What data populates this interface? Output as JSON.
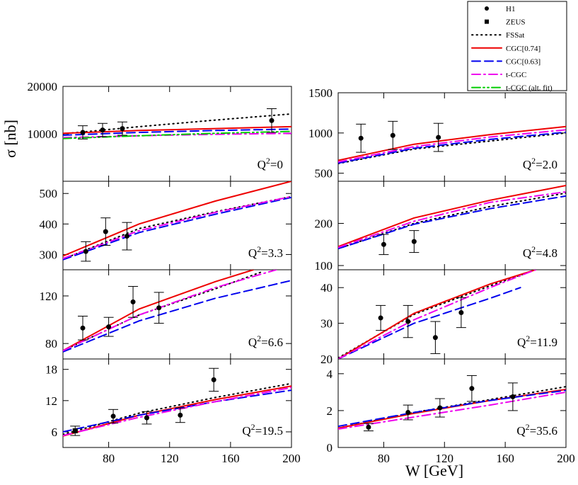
{
  "chart_data": {
    "type": "line",
    "ylabel": "σ [nb]",
    "xlabel": "W [GeV]",
    "xlim": [
      50,
      200
    ],
    "x_ticks": [
      80,
      120,
      160,
      200
    ],
    "grid": false,
    "legend_position": "top-right",
    "legend": [
      {
        "key": "H1",
        "label": "H1",
        "kind": "marker",
        "marker": "circle"
      },
      {
        "key": "ZEUS",
        "label": "ZEUS",
        "kind": "marker",
        "marker": "square"
      },
      {
        "key": "FSSat",
        "label": "FSSat",
        "kind": "line",
        "color": "#000000",
        "dash": "1.5,5"
      },
      {
        "key": "CGC074",
        "label": "CGC[0.74]",
        "kind": "line",
        "color": "#ee0000",
        "dash": ""
      },
      {
        "key": "CGC063",
        "label": "CGC[0.63]",
        "kind": "line",
        "color": "#0000ee",
        "dash": "12,6"
      },
      {
        "key": "tCGC",
        "label": "t-CGC",
        "kind": "line",
        "color": "#ee00ee",
        "dash": "12,5,2,5"
      },
      {
        "key": "tCGCalt",
        "label": "t-CGC (alt. fit)",
        "kind": "line",
        "color": "#00cc00",
        "dash": "12,4,2,4,2,4"
      }
    ],
    "panels": [
      {
        "label": "0",
        "ylim": [
          0,
          20000
        ],
        "y_ticks": [
          10000,
          20000
        ],
        "series": [
          {
            "key": "FSSat",
            "x": [
              50,
              100,
              150,
              200
            ],
            "y": [
              10000,
              11500,
              12900,
              14200
            ]
          },
          {
            "key": "CGC074",
            "x": [
              50,
              100,
              150,
              200
            ],
            "y": [
              10100,
              10700,
              11100,
              11500
            ]
          },
          {
            "key": "CGC063",
            "x": [
              50,
              100,
              150,
              200
            ],
            "y": [
              9700,
              10300,
              10700,
              11000
            ]
          },
          {
            "key": "tCGC",
            "x": [
              50,
              100,
              150,
              200
            ],
            "y": [
              9200,
              9600,
              9900,
              10100
            ]
          },
          {
            "key": "tCGCalt",
            "x": [
              50,
              100,
              150,
              200
            ],
            "y": [
              9000,
              9600,
              10100,
              10500
            ]
          }
        ],
        "points": [
          {
            "x": 63,
            "y": 10300,
            "err": 1400,
            "marker": "circle"
          },
          {
            "x": 76,
            "y": 10800,
            "err": 1400,
            "marker": "circle"
          },
          {
            "x": 89,
            "y": 11100,
            "err": 1400,
            "marker": "circle"
          },
          {
            "x": 187,
            "y": 12800,
            "err": 2500,
            "marker": "circle"
          }
        ]
      },
      {
        "label": "2.0",
        "ylim": [
          400,
          1500
        ],
        "y_ticks": [
          500,
          1000,
          1500
        ],
        "series": [
          {
            "key": "FSSat",
            "x": [
              50,
              100,
              150,
              200
            ],
            "y": [
              620,
              800,
              900,
              1000
            ]
          },
          {
            "key": "CGC074",
            "x": [
              50,
              100,
              150,
              200
            ],
            "y": [
              660,
              860,
              980,
              1080
            ]
          },
          {
            "key": "CGC063",
            "x": [
              50,
              100,
              150,
              200
            ],
            "y": [
              625,
              810,
              920,
              1010
            ]
          },
          {
            "key": "tCGC",
            "x": [
              50,
              100,
              150,
              200
            ],
            "y": [
              640,
              830,
              950,
              1040
            ]
          }
        ],
        "points": [
          {
            "x": 65,
            "y": 935,
            "err": 175,
            "marker": "circle"
          },
          {
            "x": 86,
            "y": 970,
            "err": 175,
            "marker": "circle"
          },
          {
            "x": 116,
            "y": 945,
            "err": 175,
            "marker": "circle"
          }
        ]
      },
      {
        "label": "3.3",
        "ylim": [
          250,
          540
        ],
        "y_ticks": [
          300,
          400,
          500
        ],
        "series": [
          {
            "key": "FSSat",
            "x": [
              50,
              100,
              150,
              200
            ],
            "y": [
              285,
              385,
              440,
              490
            ]
          },
          {
            "key": "CGC074",
            "x": [
              50,
              100,
              150,
              200
            ],
            "y": [
              295,
              400,
              475,
              540
            ]
          },
          {
            "key": "CGC063",
            "x": [
              50,
              100,
              150,
              200
            ],
            "y": [
              283,
              372,
              432,
              487
            ]
          },
          {
            "key": "tCGC",
            "x": [
              50,
              100,
              150,
              200
            ],
            "y": [
              287,
              378,
              438,
              490
            ]
          }
        ],
        "points": [
          {
            "x": 65,
            "y": 310,
            "err": 32,
            "marker": "circle"
          },
          {
            "x": 78,
            "y": 375,
            "err": 45,
            "marker": "circle"
          },
          {
            "x": 92,
            "y": 360,
            "err": 45,
            "marker": "circle"
          }
        ]
      },
      {
        "label": "4.8",
        "ylim": [
          90,
          300
        ],
        "y_ticks": [
          100,
          200
        ],
        "series": [
          {
            "key": "FSSat",
            "x": [
              50,
              100,
              150,
              200
            ],
            "y": [
              140,
              200,
              240,
              272
            ]
          },
          {
            "key": "CGC074",
            "x": [
              50,
              100,
              150,
              200
            ],
            "y": [
              145,
              213,
              255,
              290
            ]
          },
          {
            "key": "CGC063",
            "x": [
              50,
              100,
              150,
              200
            ],
            "y": [
              140,
              198,
              235,
              265
            ]
          },
          {
            "key": "tCGC",
            "x": [
              50,
              100,
              150,
              200
            ],
            "y": [
              143,
              205,
              250,
              275
            ]
          }
        ],
        "points": [
          {
            "x": 80,
            "y": 150,
            "err": 24,
            "marker": "circle"
          },
          {
            "x": 100,
            "y": 157,
            "err": 26,
            "marker": "circle"
          }
        ]
      },
      {
        "label": "6.6",
        "ylim": [
          67,
          142
        ],
        "y_ticks": [
          80,
          120
        ],
        "series": [
          {
            "key": "FSSat",
            "x": [
              50,
              100,
              150,
              180
            ],
            "y": [
              74,
              104,
              126,
              140
            ]
          },
          {
            "key": "CGC074",
            "x": [
              50,
              100,
              150,
              175
            ],
            "y": [
              74,
              109,
              132,
              142
            ]
          },
          {
            "key": "CGC063",
            "x": [
              50,
              100,
              150,
              200
            ],
            "y": [
              73,
              99,
              118,
              133
            ]
          },
          {
            "key": "tCGC",
            "x": [
              50,
              100,
              150,
              190
            ],
            "y": [
              74,
              104,
              127,
              142
            ]
          }
        ],
        "points": [
          {
            "x": 63,
            "y": 93,
            "err": 10,
            "marker": "circle"
          },
          {
            "x": 80,
            "y": 94,
            "err": 8,
            "marker": "circle"
          },
          {
            "x": 96,
            "y": 115,
            "err": 13,
            "marker": "circle"
          },
          {
            "x": 113,
            "y": 110,
            "err": 13,
            "marker": "circle"
          }
        ]
      },
      {
        "label": "11.9",
        "ylim": [
          20,
          45
        ],
        "y_ticks": [
          20,
          30,
          40
        ],
        "series": [
          {
            "key": "FSSat",
            "x": [
              50,
              100,
              150,
              180
            ],
            "y": [
              20.3,
              32.5,
              40.5,
              45
            ]
          },
          {
            "key": "CGC074",
            "x": [
              50,
              100,
              150,
              180
            ],
            "y": [
              20,
              32.8,
              41,
              45
            ]
          },
          {
            "key": "CGC063",
            "x": [
              50,
              100,
              150,
              170
            ],
            "y": [
              20,
              30,
              37,
              40
            ]
          },
          {
            "key": "tCGC",
            "x": [
              50,
              100,
              150,
              180
            ],
            "y": [
              20,
              31,
              40,
              45
            ]
          }
        ],
        "points": [
          {
            "x": 78,
            "y": 31.5,
            "err": 3.5,
            "marker": "circle"
          },
          {
            "x": 96,
            "y": 30.5,
            "err": 4.5,
            "marker": "circle"
          },
          {
            "x": 114,
            "y": 26,
            "err": 4.5,
            "marker": "circle"
          },
          {
            "x": 131,
            "y": 33,
            "err": 4.2,
            "marker": "circle"
          }
        ]
      },
      {
        "label": "19.5",
        "ylim": [
          3,
          20
        ],
        "y_ticks": [
          6,
          12,
          18
        ],
        "series": [
          {
            "key": "FSSat",
            "x": [
              50,
              100,
              150,
              200
            ],
            "y": [
              5.5,
              9.6,
              12.6,
              15.3
            ]
          },
          {
            "key": "CGC074",
            "x": [
              50,
              100,
              150,
              200
            ],
            "y": [
              5.2,
              9.2,
              12.2,
              14.8
            ]
          },
          {
            "key": "CGC063",
            "x": [
              50,
              100,
              150,
              200
            ],
            "y": [
              6,
              9.2,
              11.8,
              14
            ]
          },
          {
            "key": "tCGC",
            "x": [
              50,
              100,
              150,
              200
            ],
            "y": [
              5.3,
              8.8,
              11.8,
              14.5
            ]
          }
        ],
        "points": [
          {
            "x": 58,
            "y": 6.2,
            "err": 0.9,
            "marker": "square"
          },
          {
            "x": 83,
            "y": 9,
            "err": 1.3,
            "marker": "circle"
          },
          {
            "x": 105,
            "y": 8.7,
            "err": 1.2,
            "marker": "circle"
          },
          {
            "x": 127,
            "y": 9.2,
            "err": 1.4,
            "marker": "circle"
          },
          {
            "x": 149,
            "y": 16,
            "err": 2.2,
            "marker": "circle"
          }
        ]
      },
      {
        "label": "35.6",
        "ylim": [
          0,
          4.8
        ],
        "y_ticks": [
          0,
          2,
          4
        ],
        "series": [
          {
            "key": "FSSat",
            "x": [
              50,
              100,
              150,
              200
            ],
            "y": [
              1.05,
              1.9,
              2.6,
              3.3
            ]
          },
          {
            "key": "CGC074",
            "x": [
              50,
              100,
              150,
              200
            ],
            "y": [
              1.05,
              1.85,
              2.55,
              3.15
            ]
          },
          {
            "key": "CGC063",
            "x": [
              50,
              100,
              150,
              200
            ],
            "y": [
              1.15,
              1.9,
              2.55,
              3.1
            ]
          },
          {
            "key": "tCGC",
            "x": [
              50,
              100,
              150,
              200
            ],
            "y": [
              1.0,
              1.65,
              2.3,
              3.0
            ]
          }
        ],
        "points": [
          {
            "x": 70,
            "y": 1.1,
            "err": 0.2,
            "marker": "circle"
          },
          {
            "x": 96,
            "y": 1.9,
            "err": 0.4,
            "marker": "circle"
          },
          {
            "x": 117,
            "y": 2.15,
            "err": 0.5,
            "marker": "circle"
          },
          {
            "x": 138,
            "y": 3.2,
            "err": 0.7,
            "marker": "circle"
          },
          {
            "x": 165,
            "y": 2.75,
            "err": 0.75,
            "marker": "circle"
          }
        ]
      }
    ]
  }
}
